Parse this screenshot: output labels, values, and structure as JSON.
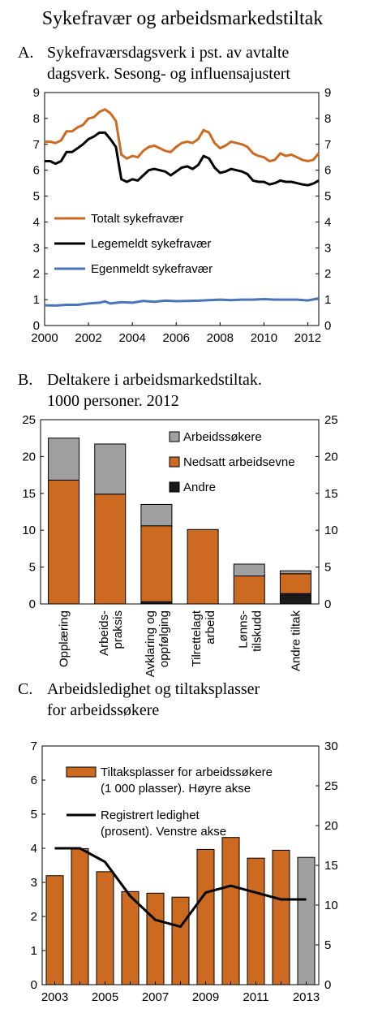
{
  "figure_title": "Sykefravær og arbeidsmarkedstiltak",
  "colors": {
    "orange": "#cc6a22",
    "black": "#000000",
    "blue": "#4a74b8",
    "gray": "#a0a0a0",
    "dark": "#1a1a1a"
  },
  "chart_data": [
    {
      "panel": "A.",
      "type": "line",
      "title_lines": [
        "Sykefraværsdagsverk i pst. av avtalte",
        "dagsverk. Sesong- og influensajustert"
      ],
      "xticks": [
        "2000",
        "2002",
        "2004",
        "2006",
        "2008",
        "2010",
        "2012"
      ],
      "xlim": [
        2000,
        2012.5
      ],
      "ylim": [
        0,
        9
      ],
      "yticks": [
        0,
        1,
        2,
        3,
        4,
        5,
        6,
        7,
        8,
        9
      ],
      "grid": false,
      "legend_position": "middle-left",
      "series": [
        {
          "name": "Totalt sykefravær",
          "color": "#cc6a22",
          "x": [
            2000,
            2000.25,
            2000.5,
            2000.75,
            2001,
            2001.25,
            2001.5,
            2001.75,
            2002,
            2002.25,
            2002.5,
            2002.75,
            2003,
            2003.25,
            2003.5,
            2003.75,
            2004,
            2004.25,
            2004.5,
            2004.75,
            2005,
            2005.25,
            2005.5,
            2005.75,
            2006,
            2006.25,
            2006.5,
            2006.75,
            2007,
            2007.25,
            2007.5,
            2007.75,
            2008,
            2008.25,
            2008.5,
            2008.75,
            2009,
            2009.25,
            2009.5,
            2009.75,
            2010,
            2010.25,
            2010.5,
            2010.75,
            2011,
            2011.25,
            2011.5,
            2011.75,
            2012,
            2012.25,
            2012.5
          ],
          "y": [
            7.1,
            7.1,
            7.05,
            7.15,
            7.5,
            7.5,
            7.65,
            7.75,
            8.0,
            8.05,
            8.25,
            8.35,
            8.2,
            7.9,
            6.6,
            6.45,
            6.55,
            6.5,
            6.75,
            6.9,
            6.95,
            6.85,
            6.75,
            6.7,
            6.9,
            7.05,
            7.1,
            7.05,
            7.2,
            7.55,
            7.45,
            7.05,
            6.85,
            6.95,
            7.1,
            7.05,
            7.0,
            6.9,
            6.65,
            6.55,
            6.5,
            6.35,
            6.4,
            6.65,
            6.55,
            6.6,
            6.5,
            6.4,
            6.35,
            6.4,
            6.65
          ]
        },
        {
          "name": "Legemeldt sykefravær",
          "color": "#000000",
          "x": [
            2000,
            2000.25,
            2000.5,
            2000.75,
            2001,
            2001.25,
            2001.5,
            2001.75,
            2002,
            2002.25,
            2002.5,
            2002.75,
            2003,
            2003.25,
            2003.5,
            2003.75,
            2004,
            2004.25,
            2004.5,
            2004.75,
            2005,
            2005.25,
            2005.5,
            2005.75,
            2006,
            2006.25,
            2006.5,
            2006.75,
            2007,
            2007.25,
            2007.5,
            2007.75,
            2008,
            2008.25,
            2008.5,
            2008.75,
            2009,
            2009.25,
            2009.5,
            2009.75,
            2010,
            2010.25,
            2010.5,
            2010.75,
            2011,
            2011.25,
            2011.5,
            2011.75,
            2012,
            2012.25,
            2012.5
          ],
          "y": [
            6.35,
            6.35,
            6.25,
            6.35,
            6.7,
            6.7,
            6.85,
            7.0,
            7.2,
            7.3,
            7.45,
            7.45,
            7.2,
            6.9,
            5.65,
            5.55,
            5.65,
            5.6,
            5.8,
            6.0,
            6.05,
            6.0,
            5.95,
            5.8,
            5.95,
            6.1,
            6.15,
            6.05,
            6.2,
            6.55,
            6.45,
            6.1,
            5.9,
            5.95,
            6.05,
            6.0,
            5.95,
            5.85,
            5.6,
            5.55,
            5.55,
            5.45,
            5.5,
            5.6,
            5.55,
            5.55,
            5.5,
            5.45,
            5.42,
            5.48,
            5.6
          ]
        },
        {
          "name": "Egenmeldt sykefravær",
          "color": "#4a74b8",
          "x": [
            2000,
            2000.5,
            2001,
            2001.5,
            2002,
            2002.5,
            2002.75,
            2003,
            2003.5,
            2004,
            2004.5,
            2005,
            2005.5,
            2006,
            2006.5,
            2007,
            2007.5,
            2008,
            2008.5,
            2009,
            2009.5,
            2010,
            2010.5,
            2011,
            2011.5,
            2012,
            2012.5
          ],
          "y": [
            0.78,
            0.77,
            0.8,
            0.8,
            0.85,
            0.88,
            0.93,
            0.85,
            0.9,
            0.88,
            0.95,
            0.92,
            0.96,
            0.94,
            0.95,
            0.96,
            0.98,
            1.0,
            0.98,
            1.0,
            1.0,
            1.02,
            1.0,
            1.0,
            1.0,
            0.97,
            1.05
          ]
        }
      ]
    },
    {
      "panel": "B.",
      "type": "bar",
      "stacked": true,
      "title_lines": [
        "Deltakere i arbeidsmarkedstiltak.",
        "1000 personer.  2012"
      ],
      "categories": [
        "Opplæring",
        "Arbeids-\npraksis",
        "Avklaring og\noppfølging",
        "Tilrettelagt\narbeid",
        "Lønns-\ntilskudd",
        "Andre tiltak"
      ],
      "ylim": [
        0,
        25
      ],
      "yticks": [
        0,
        5,
        10,
        15,
        20,
        25
      ],
      "grid": false,
      "legend_position": "top-right",
      "series": [
        {
          "name": "Andre",
          "color": "#1a1a1a",
          "values": [
            0.0,
            0.0,
            0.3,
            0.0,
            0.0,
            1.4
          ]
        },
        {
          "name": "Nedsatt arbeidsevne",
          "color": "#cc6a22",
          "values": [
            16.8,
            14.9,
            10.3,
            10.1,
            3.8,
            2.7
          ]
        },
        {
          "name": "Arbeidssøkere",
          "color": "#a0a0a0",
          "values": [
            5.7,
            6.8,
            2.9,
            0.0,
            1.6,
            0.4
          ]
        }
      ]
    },
    {
      "panel": "C.",
      "type": "bar",
      "title_lines": [
        "Arbeidsledighet og tiltaksplasser",
        "for arbeidssøkere"
      ],
      "x": [
        2003,
        2004,
        2005,
        2006,
        2007,
        2008,
        2009,
        2010,
        2011,
        2012,
        2013
      ],
      "xticks": [
        "2003",
        "2005",
        "2007",
        "2009",
        "2011",
        "2013"
      ],
      "ylim_left": [
        0,
        7
      ],
      "yticks_left": [
        0,
        1,
        2,
        3,
        4,
        5,
        6,
        7
      ],
      "ylim_right": [
        0,
        30
      ],
      "yticks_right": [
        0,
        5,
        10,
        15,
        20,
        25,
        30
      ],
      "grid": false,
      "legend_position": "top",
      "series": [
        {
          "name": "Tiltaksplasser for arbeidssøkere (1 000 plasser). Høyre akse",
          "legend_lines": [
            "Tiltaksplasser for arbeidssøkere",
            "(1 000 plasser). Høyre akse"
          ],
          "axis": "right",
          "kind": "bar",
          "color": "#cc6a22",
          "highlight_color": "#a0a0a0",
          "highlight_x": 2013,
          "values": [
            13.7,
            17.1,
            14.2,
            11.7,
            11.5,
            11.0,
            17.0,
            18.5,
            15.9,
            16.9,
            16.0
          ]
        },
        {
          "name": "Registrert ledighet (prosent). Venstre akse",
          "legend_lines": [
            "Registrert ledighet",
            "(prosent). Venstre akse"
          ],
          "axis": "left",
          "kind": "line",
          "color": "#000000",
          "values": [
            4.0,
            4.0,
            3.6,
            2.6,
            1.9,
            1.7,
            2.7,
            2.9,
            2.7,
            2.5,
            2.5
          ]
        }
      ]
    }
  ]
}
